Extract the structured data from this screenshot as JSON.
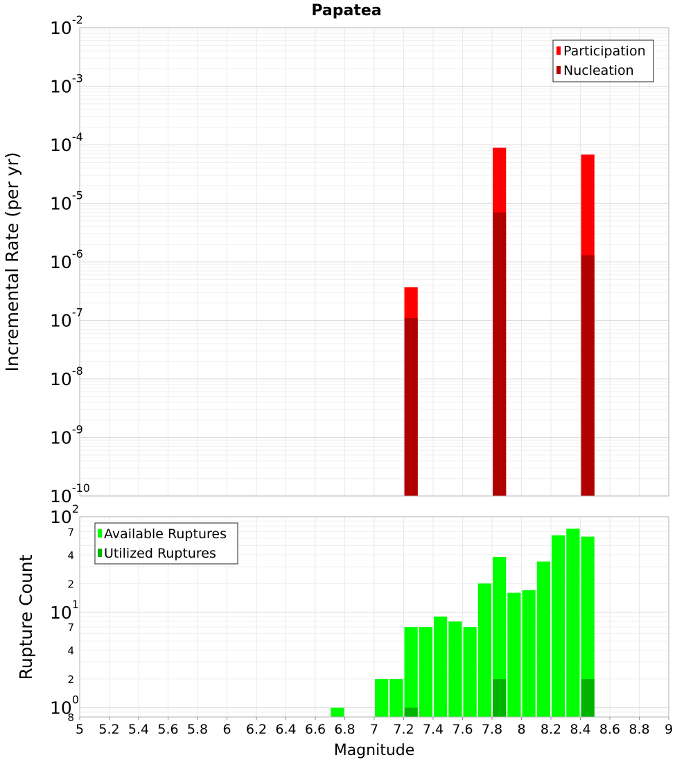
{
  "title": "Papatea",
  "x_axis": {
    "label": "Magnitude",
    "range": [
      5,
      9
    ],
    "ticks": [
      "5",
      "5.2",
      "5.4",
      "5.6",
      "5.8",
      "6",
      "6.2",
      "6.4",
      "6.6",
      "6.8",
      "7",
      "7.2",
      "7.4",
      "7.6",
      "7.8",
      "8",
      "8.2",
      "8.4",
      "8.6",
      "8.8",
      "9"
    ]
  },
  "top_panel": {
    "ylabel": "Incremental Rate (per yr)",
    "yscale": "log",
    "ylim": [
      1e-10,
      0.01
    ],
    "ytick_base": "10",
    "ytick_exponents": [
      "-10",
      "-9",
      "-8",
      "-7",
      "-6",
      "-5",
      "-4",
      "-3",
      "-2"
    ],
    "legend": {
      "position": "top-right",
      "items": [
        {
          "label": "Participation",
          "color": "#ff0000"
        },
        {
          "label": "Nucleation",
          "color": "#b00000"
        }
      ]
    }
  },
  "bottom_panel": {
    "ylabel": "Rupture Count",
    "yscale": "log",
    "ylim": [
      0.8,
      100
    ],
    "ytick_major": [
      {
        "base": "10",
        "exp": "0",
        "value": 1
      },
      {
        "base": "10",
        "exp": "1",
        "value": 10
      },
      {
        "base": "10",
        "exp": "2",
        "value": 100
      }
    ],
    "ytick_minor": [
      {
        "label": "8",
        "value": 0.8
      },
      {
        "label": "2",
        "value": 2
      },
      {
        "label": "4",
        "value": 4
      },
      {
        "label": "7",
        "value": 7
      },
      {
        "label": "2",
        "value": 20
      },
      {
        "label": "4",
        "value": 40
      },
      {
        "label": "7",
        "value": 70
      }
    ],
    "legend": {
      "position": "top-left",
      "items": [
        {
          "label": "Available Ruptures",
          "color": "#00ff00"
        },
        {
          "label": "Utilized Ruptures",
          "color": "#00b400"
        }
      ]
    }
  },
  "chart_data": [
    {
      "type": "bar",
      "title": "Papatea",
      "xlabel": "Magnitude",
      "ylabel": "Incremental Rate (per yr)",
      "yscale": "log",
      "xlim": [
        5,
        9
      ],
      "ylim": [
        1e-10,
        0.01
      ],
      "bar_width": 0.1,
      "grid": true,
      "legend": "top-right",
      "series": [
        {
          "name": "Participation",
          "color": "#ff0000",
          "x": [
            7.25,
            7.85,
            8.45
          ],
          "values": [
            3.7e-07,
            8.9e-05,
            6.8e-05
          ]
        },
        {
          "name": "Nucleation",
          "color": "#b00000",
          "x": [
            7.25,
            7.85,
            8.45
          ],
          "values": [
            1.1e-07,
            7e-06,
            1.3e-06
          ]
        }
      ]
    },
    {
      "type": "bar",
      "xlabel": "Magnitude",
      "ylabel": "Rupture Count",
      "yscale": "log",
      "xlim": [
        5,
        9
      ],
      "ylim": [
        0.8,
        100
      ],
      "bar_width": 0.1,
      "grid": true,
      "legend": "top-left",
      "series": [
        {
          "name": "Available Ruptures",
          "color": "#00ff00",
          "x": [
            6.75,
            7.05,
            7.15,
            7.25,
            7.35,
            7.45,
            7.55,
            7.65,
            7.75,
            7.85,
            7.95,
            8.05,
            8.15,
            8.25,
            8.35,
            8.45
          ],
          "values": [
            1,
            2,
            2,
            7,
            7,
            9,
            8,
            7,
            20,
            38,
            16,
            17,
            34,
            64,
            75,
            62
          ]
        },
        {
          "name": "Utilized Ruptures",
          "color": "#00b400",
          "x": [
            7.25,
            7.85,
            8.45
          ],
          "values": [
            1,
            2,
            2
          ]
        }
      ]
    }
  ]
}
